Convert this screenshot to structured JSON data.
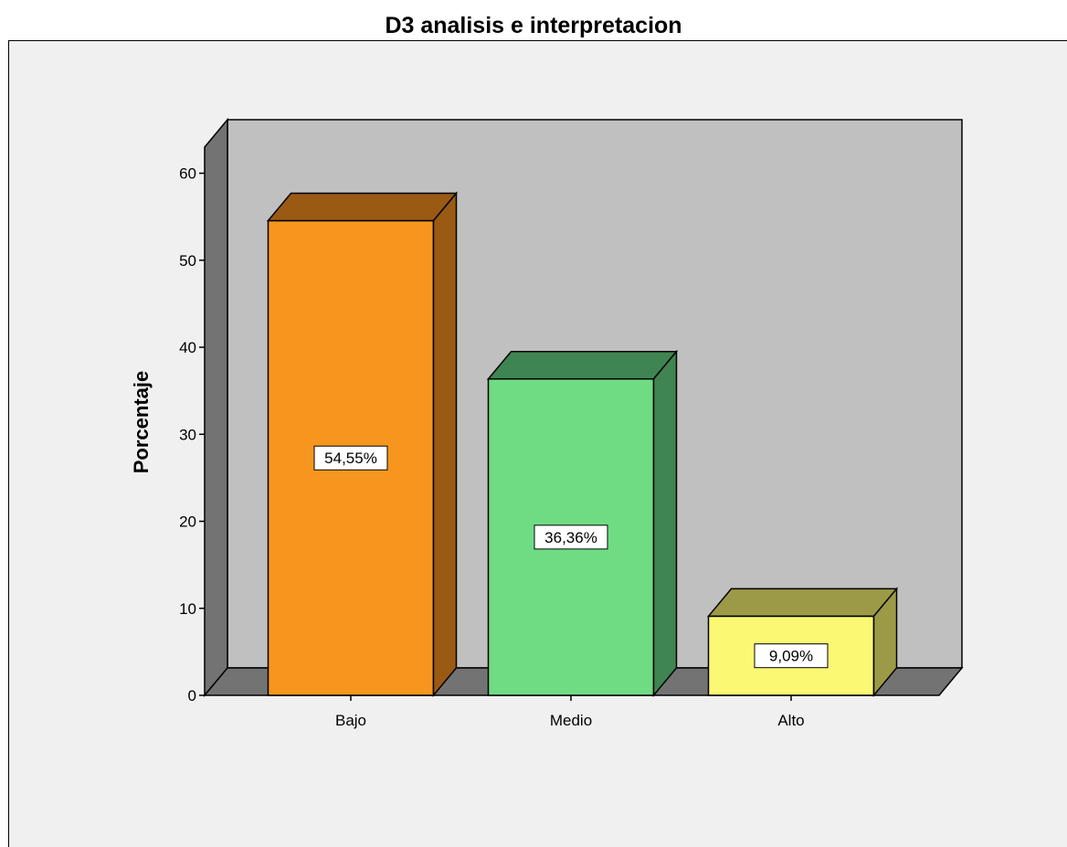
{
  "chart_data": {
    "type": "bar",
    "title": "D3 analisis e interpretacion",
    "xlabel": "",
    "ylabel": "Porcentaje",
    "categories": [
      "Bajo",
      "Medio",
      "Alto"
    ],
    "values": [
      54.55,
      36.36,
      9.09
    ],
    "data_labels": [
      "54,55%",
      "36,36%",
      "9,09%"
    ],
    "yticks": [
      "0",
      "10",
      "20",
      "30",
      "40",
      "50",
      "60"
    ],
    "ylim": [
      0,
      63
    ],
    "grid": false,
    "legend": "none",
    "style": "3d",
    "colors": {
      "bars": [
        "#f7961e",
        "#6fdc84",
        "#fbf873"
      ],
      "bar_tops": [
        "#9a5a14",
        "#3f8551",
        "#9c9a46"
      ],
      "back_wall": "#c0c0c0",
      "side_wall": "#737373",
      "floor": "#737373",
      "background": "#f0f0f0"
    }
  }
}
